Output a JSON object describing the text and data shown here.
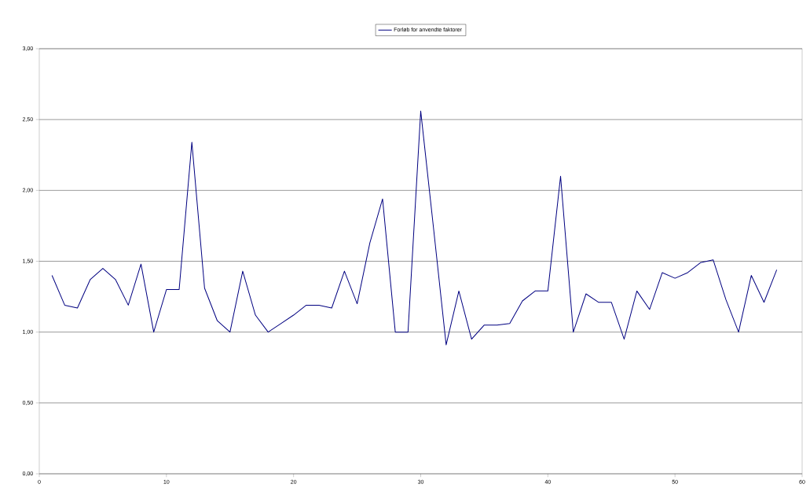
{
  "chart_data": {
    "type": "line",
    "x": [
      1,
      2,
      3,
      4,
      5,
      6,
      7,
      8,
      9,
      10,
      11,
      12,
      13,
      14,
      15,
      16,
      17,
      18,
      19,
      20,
      21,
      22,
      23,
      24,
      25,
      26,
      27,
      28,
      29,
      30,
      31,
      32,
      33,
      34,
      35,
      36,
      37,
      38,
      39,
      40,
      41,
      42,
      43,
      44,
      45,
      46,
      47,
      48,
      49,
      50,
      51,
      52,
      53,
      54,
      55,
      56,
      57,
      58
    ],
    "series": [
      {
        "name": "Forløb for anvendte faktorer",
        "color": "#000080",
        "values": [
          1.4,
          1.19,
          1.17,
          1.37,
          1.45,
          1.37,
          1.19,
          1.48,
          1.0,
          1.3,
          1.3,
          2.34,
          1.31,
          1.08,
          1.0,
          1.43,
          1.12,
          1.0,
          1.06,
          1.12,
          1.19,
          1.19,
          1.17,
          1.43,
          1.2,
          1.63,
          1.94,
          1.0,
          1.0,
          2.56,
          1.74,
          0.91,
          1.29,
          0.95,
          1.05,
          1.05,
          1.06,
          1.22,
          1.29,
          1.29,
          2.1,
          1.0,
          1.27,
          1.21,
          1.21,
          0.95,
          1.29,
          1.16,
          1.42,
          1.38,
          1.42,
          1.49,
          1.51,
          1.23,
          1.0,
          1.4,
          1.21,
          1.44
        ]
      }
    ],
    "xlim": [
      0,
      60
    ],
    "xticks": [
      0,
      10,
      20,
      30,
      40,
      50,
      60
    ],
    "ylim": [
      0,
      3
    ],
    "yticks": [
      {
        "value": 0,
        "label": "0,00"
      },
      {
        "value": 0.5,
        "label": "0,50"
      },
      {
        "value": 1,
        "label": "1,00"
      },
      {
        "value": 1.5,
        "label": "1,50"
      },
      {
        "value": 2,
        "label": "2,00"
      },
      {
        "value": 2.5,
        "label": "2,50"
      },
      {
        "value": 3,
        "label": "3,00"
      }
    ],
    "grid": "y",
    "legend": "top",
    "marker": "none",
    "line_style": "solid"
  }
}
